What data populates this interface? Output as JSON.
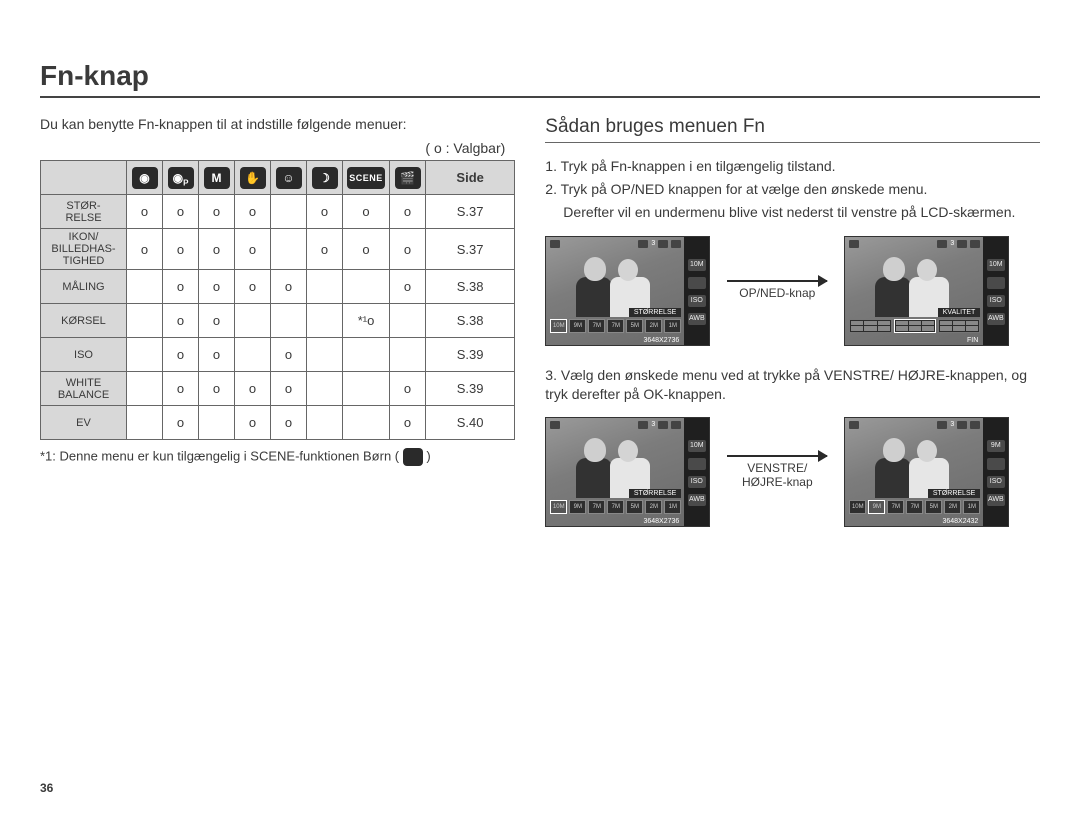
{
  "title": "Fn-knap",
  "left": {
    "intro": "Du kan benytte Fn-knappen til at indstille følgende menuer:",
    "legend": "( o : Valgbar)",
    "headerModes": [
      "◉",
      "◉P",
      "M",
      "✋",
      "👥",
      "👤",
      "SCENE",
      "🎬"
    ],
    "sideHeader": "Side",
    "rows": [
      {
        "label": "STØR-\nRELSE",
        "cells": [
          "o",
          "o",
          "o",
          "o",
          "",
          "o",
          "o",
          "o"
        ],
        "page": "S.37"
      },
      {
        "label": "IKON/\nBILLEDHAS-\nTIGHED",
        "cells": [
          "o",
          "o",
          "o",
          "o",
          "",
          "o",
          "o",
          "o"
        ],
        "page": "S.37"
      },
      {
        "label": "MÅLING",
        "cells": [
          "",
          "o",
          "o",
          "o",
          "o",
          "",
          "",
          "o"
        ],
        "page": "S.38"
      },
      {
        "label": "KØRSEL",
        "cells": [
          "",
          "o",
          "o",
          "",
          "",
          "",
          "*¹o",
          ""
        ],
        "page": "S.38"
      },
      {
        "label": "ISO",
        "cells": [
          "",
          "o",
          "o",
          "",
          "o",
          "",
          "",
          ""
        ],
        "page": "S.39"
      },
      {
        "label": "WHITE\nBALANCE",
        "cells": [
          "",
          "o",
          "o",
          "o",
          "o",
          "",
          "",
          "o"
        ],
        "page": "S.39"
      },
      {
        "label": "EV",
        "cells": [
          "",
          "o",
          "",
          "o",
          "o",
          "",
          "",
          "o"
        ],
        "page": "S.40"
      }
    ],
    "footnote": "*1: Denne menu er kun tilgængelig i SCENE-funktionen Børn ("
  },
  "right": {
    "subheading": "Sådan bruges menuen Fn",
    "step1": "1. Tryk på Fn-knappen i en tilgængelig tilstand.",
    "step2a": "2. Tryk på OP/NED knappen for at vælge den ønskede menu.",
    "step2b": "Derefter vil en undermenu blive vist nederst til venstre på LCD-skærmen.",
    "arrow1": "OP/NED-knap",
    "step3": "3. Vælg den ønskede menu ved at trykke på VENSTRE/ HØJRE-knappen, og tryk derefter på OK-knappen.",
    "arrow2a": "VENSTRE/",
    "arrow2b": "HØJRE-knap",
    "lcd": {
      "size_label": "STØRRELSE",
      "quality_label": "KVALITET",
      "res1": "3648X2736",
      "res2": "3648X2432",
      "fin": "FIN",
      "sidebar": [
        "10M",
        "ISO",
        "AUTO",
        "AWB"
      ],
      "topRight": "3",
      "thumbs": [
        "10M",
        "9M",
        "7M",
        "7M",
        "5M",
        "2M",
        "1M"
      ]
    }
  },
  "pageNum": "36"
}
